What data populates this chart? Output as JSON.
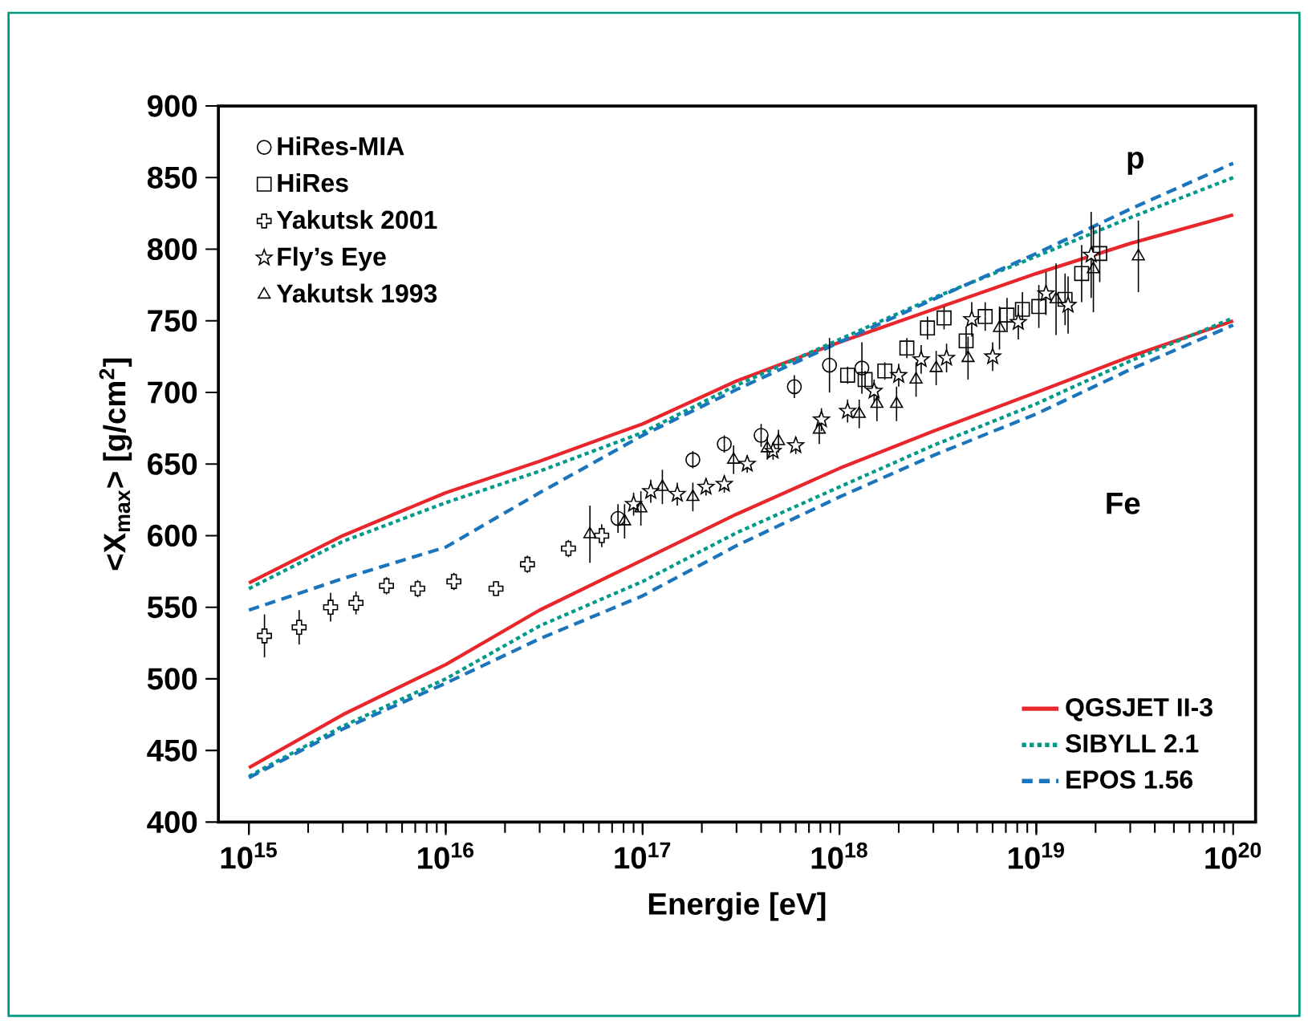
{
  "chart_data": {
    "type": "scatter",
    "xlabel": "Energie [eV]",
    "ylabel": "<X$_{max}$> [g/cm$^{2}$]",
    "log": "x",
    "xlim": [
      700000000000000.0,
      1.3e+20
    ],
    "ylim": [
      400,
      900
    ],
    "xticks": [
      {
        "value": 1000000000000000.0,
        "label": "10$^{15}$"
      },
      {
        "value": 1e+16,
        "label": "10$^{16}$"
      },
      {
        "value": 1e+17,
        "label": "10$^{17}$"
      },
      {
        "value": 1e+18,
        "label": "10$^{18}$"
      },
      {
        "value": 1e+19,
        "label": "10$^{19}$"
      },
      {
        "value": 1e+20,
        "label": "10$^{20}$"
      }
    ],
    "yticks": [
      400,
      450,
      500,
      550,
      600,
      650,
      700,
      750,
      800,
      850,
      900
    ],
    "grid": false,
    "legend": "top left",
    "annotations": [
      "p",
      "Fe"
    ],
    "series": [
      {
        "name": "HiRes-MIA",
        "marker": "circle",
        "color": "#000000",
        "x": [
          7.5e+16,
          1.8e+17,
          2.6e+17,
          4e+17,
          5.9e+17,
          8.9e+17,
          1.3e+18
        ],
        "values": [
          612,
          653,
          664,
          670,
          704,
          719,
          717
        ],
        "errors": [
          10,
          6,
          6,
          8,
          8,
          19,
          18
        ]
      },
      {
        "name": "HiRes",
        "marker": "square",
        "color": "#000000",
        "x": [
          1.1e+18,
          1.35e+18,
          1.7e+18,
          2.2e+18,
          2.8e+18,
          3.4e+18,
          4.4e+18,
          5.5e+18,
          7.1e+18,
          8.5e+18,
          1.03e+19,
          1.4e+19,
          1.7e+19,
          2.1e+19
        ],
        "values": [
          712,
          709,
          715,
          731,
          745,
          752,
          736,
          753,
          754,
          758,
          760,
          765,
          783,
          797
        ],
        "errors": [
          6,
          6,
          6,
          7,
          8,
          8,
          10,
          10,
          12,
          12,
          15,
          18,
          20,
          20
        ]
      },
      {
        "name": "Yakutsk 2001",
        "marker": "cross",
        "color": "#000000",
        "x": [
          1200000000000000.0,
          1800000000000000.0,
          2600000000000000.0,
          3500000000000000.0,
          5000000000000000.0,
          7200000000000000.0,
          1.1e+16,
          1.8e+16,
          2.6e+16,
          4.2e+16,
          6.2e+16
        ],
        "values": [
          530,
          536,
          550,
          553,
          565,
          563,
          568,
          563,
          580,
          591,
          600
        ],
        "errors": [
          15,
          12,
          10,
          8,
          6,
          6,
          6,
          5,
          6,
          6,
          8
        ]
      },
      {
        "name": "Fly’s Eye",
        "marker": "star",
        "color": "#000000",
        "x": [
          9e+16,
          1.1e+17,
          1.5e+17,
          2.1e+17,
          2.6e+17,
          3.4e+17,
          4.6e+17,
          6e+17,
          8.1e+17,
          1.1e+18,
          1.5e+18,
          2e+18,
          2.6e+18,
          3.5e+18,
          4.7e+18,
          6e+18,
          8.1e+18,
          1.12e+19,
          1.45e+19,
          1.9e+19
        ],
        "values": [
          622,
          631,
          629,
          634,
          636,
          650,
          659,
          663,
          681,
          687,
          701,
          712,
          723,
          724,
          751,
          725,
          749,
          769,
          761,
          796
        ],
        "errors": [
          8,
          8,
          8,
          6,
          6,
          6,
          6,
          6,
          8,
          8,
          8,
          8,
          10,
          10,
          12,
          10,
          12,
          15,
          20,
          30
        ]
      },
      {
        "name": "Yakutsk 1993",
        "marker": "triangle",
        "color": "#000000",
        "x": [
          5.4e+16,
          8.1e+16,
          9.8e+16,
          1.26e+17,
          1.8e+17,
          2.9e+17,
          4.3e+17,
          4.9e+17,
          7.9e+17,
          1.26e+18,
          1.55e+18,
          1.95e+18,
          2.45e+18,
          3.1e+18,
          4.5e+18,
          6.5e+18,
          1.26e+19,
          1.95e+19,
          3.3e+19
        ],
        "values": [
          601,
          610,
          619,
          634,
          627,
          653,
          661,
          666,
          674,
          685,
          692,
          692,
          709,
          717,
          724,
          745,
          765,
          786,
          795
        ],
        "errors": [
          20,
          12,
          12,
          12,
          10,
          10,
          8,
          8,
          10,
          10,
          12,
          12,
          12,
          12,
          15,
          15,
          25,
          30,
          25
        ]
      },
      {
        "name": "QGSJET II-3",
        "type": "line",
        "line_style": "solid",
        "marker": "none",
        "color": "#e8262b",
        "x": [
          1000000000000000.0,
          3000000000000000.0,
          1e+16,
          3e+16,
          1e+17,
          3e+17,
          1e+18,
          3e+18,
          1e+19,
          3e+19,
          1e+20
        ],
        "values": [
          567,
          600,
          630,
          652,
          678,
          708,
          735,
          758,
          783,
          804,
          824
        ]
      },
      {
        "name": "SIBYLL 2.1",
        "type": "line",
        "line_style": "dotted",
        "marker": "none",
        "color": "#009a8a",
        "x": [
          1000000000000000.0,
          3000000000000000.0,
          1e+16,
          3e+16,
          1e+17,
          3e+17,
          1e+18,
          3e+18,
          1e+19,
          3e+19,
          1e+20
        ],
        "values": [
          563,
          596,
          623,
          645,
          672,
          705,
          737,
          766,
          795,
          822,
          850
        ]
      },
      {
        "name": "EPOS 1.56",
        "type": "line",
        "line_style": "dashed",
        "marker": "none",
        "color": "#1a75bc",
        "x": [
          1000000000000000.0,
          3000000000000000.0,
          1e+16,
          3e+16,
          1e+17,
          3e+17,
          1e+18,
          3e+18,
          1e+19,
          3e+19,
          1e+20
        ],
        "values": [
          548,
          570,
          592,
          630,
          670,
          702,
          735,
          765,
          797,
          828,
          860
        ]
      },
      {
        "type": "line",
        "line_style": "solid",
        "marker": "none",
        "color": "#e8262b",
        "x": [
          1000000000000000.0,
          3000000000000000.0,
          1e+16,
          3e+16,
          1e+17,
          3e+17,
          1e+18,
          3e+18,
          1e+19,
          3e+19,
          1e+20
        ],
        "values": [
          438,
          475,
          510,
          548,
          583,
          615,
          647,
          673,
          700,
          725,
          750
        ]
      },
      {
        "type": "line",
        "line_style": "dotted",
        "marker": "none",
        "color": "#009a8a",
        "x": [
          1000000000000000.0,
          3000000000000000.0,
          1e+16,
          3e+16,
          1e+17,
          3e+17,
          1e+18,
          3e+18,
          1e+19,
          3e+19,
          1e+20
        ],
        "values": [
          432,
          467,
          500,
          537,
          568,
          602,
          634,
          663,
          692,
          722,
          752
        ]
      },
      {
        "type": "line",
        "line_style": "dashed",
        "marker": "none",
        "color": "#1a75bc",
        "x": [
          1000000000000000.0,
          3000000000000000.0,
          1e+16,
          3e+16,
          1e+17,
          3e+17,
          1e+18,
          3e+18,
          1e+19,
          3e+19,
          1e+20
        ],
        "values": [
          431,
          465,
          497,
          528,
          558,
          593,
          627,
          656,
          685,
          716,
          747
        ]
      }
    ]
  }
}
